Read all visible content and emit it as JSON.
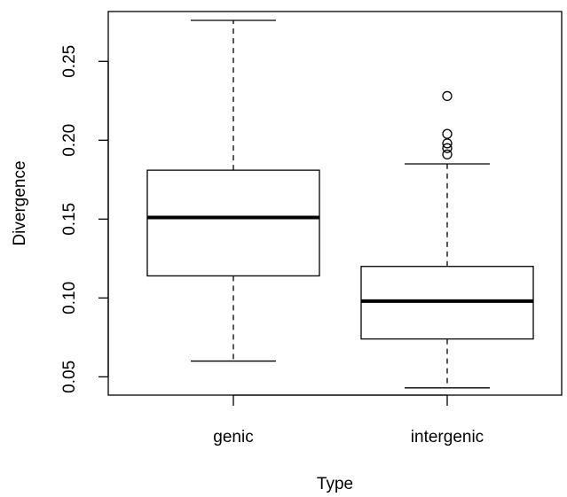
{
  "chart_data": {
    "type": "boxplot",
    "title": "",
    "xlabel": "Type",
    "ylabel": "Divergence",
    "categories": [
      "genic",
      "intergenic"
    ],
    "yticks": [
      0.05,
      0.1,
      0.15,
      0.2,
      0.25
    ],
    "ytick_labels": [
      "0.05",
      "0.10",
      "0.15",
      "0.20",
      "0.25"
    ],
    "ylim": [
      0.0384,
      0.2816
    ],
    "grid": false,
    "legend": "none",
    "boxes": [
      {
        "name": "genic",
        "whisker_low": 0.06,
        "q1": 0.114,
        "median": 0.151,
        "q3": 0.181,
        "whisker_high": 0.276,
        "outliers": []
      },
      {
        "name": "intergenic",
        "whisker_low": 0.043,
        "q1": 0.074,
        "median": 0.098,
        "q3": 0.12,
        "whisker_high": 0.185,
        "outliers": [
          0.228,
          0.204,
          0.198,
          0.195,
          0.191
        ]
      }
    ]
  }
}
